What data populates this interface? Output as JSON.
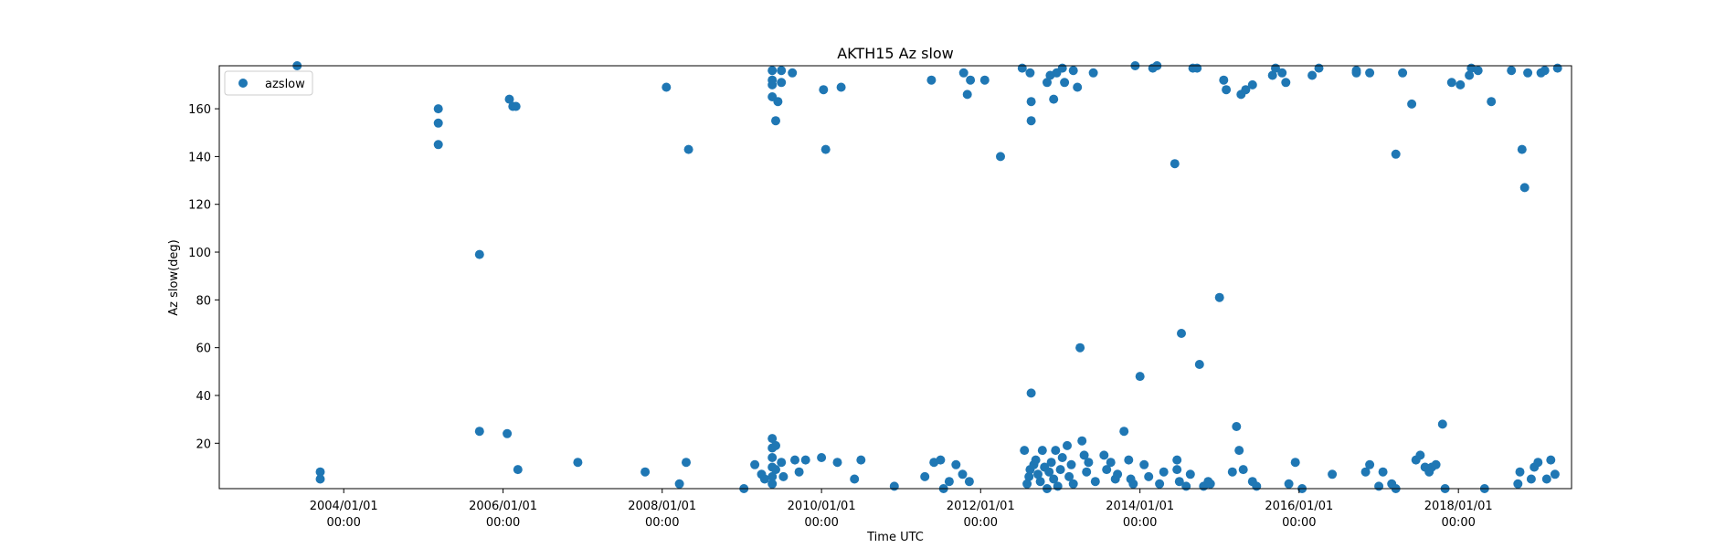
{
  "chart_data": {
    "type": "scatter",
    "title": "AKTH15 Az slow",
    "xlabel": "Time UTC",
    "ylabel": "Az slow(deg)",
    "x_axis": "date",
    "xlim": [
      "2002-06-09",
      "2019-06-04"
    ],
    "ylim": [
      1,
      178
    ],
    "grid": false,
    "legend_position": "upper-left",
    "colors": {
      "marker": "#1f77b4",
      "axes": "#000000",
      "background": "#ffffff"
    },
    "xticks": [
      {
        "value": "2004-01-01",
        "label": [
          "2004/01/01",
          "00:00"
        ]
      },
      {
        "value": "2006-01-01",
        "label": [
          "2006/01/01",
          "00:00"
        ]
      },
      {
        "value": "2008-01-01",
        "label": [
          "2008/01/01",
          "00:00"
        ]
      },
      {
        "value": "2010-01-01",
        "label": [
          "2010/01/01",
          "00:00"
        ]
      },
      {
        "value": "2012-01-01",
        "label": [
          "2012/01/01",
          "00:00"
        ]
      },
      {
        "value": "2014-01-01",
        "label": [
          "2014/01/01",
          "00:00"
        ]
      },
      {
        "value": "2016-01-01",
        "label": [
          "2016/01/01",
          "00:00"
        ]
      },
      {
        "value": "2018-01-01",
        "label": [
          "2018/01/01",
          "00:00"
        ]
      }
    ],
    "yticks": [
      {
        "value": 20,
        "label": "20"
      },
      {
        "value": 40,
        "label": "40"
      },
      {
        "value": 60,
        "label": "60"
      },
      {
        "value": 80,
        "label": "80"
      },
      {
        "value": 100,
        "label": "100"
      },
      {
        "value": 120,
        "label": "120"
      },
      {
        "value": 140,
        "label": "140"
      },
      {
        "value": 160,
        "label": "160"
      }
    ],
    "series": [
      {
        "name": "azslow",
        "points": [
          [
            "2003-06-01",
            178
          ],
          [
            "2003-09-15",
            8
          ],
          [
            "2003-09-15",
            5
          ],
          [
            "2005-03-10",
            160
          ],
          [
            "2005-03-10",
            154
          ],
          [
            "2005-03-10",
            145
          ],
          [
            "2005-09-15",
            99
          ],
          [
            "2005-09-15",
            25
          ],
          [
            "2006-01-30",
            164
          ],
          [
            "2006-02-15",
            161
          ],
          [
            "2006-03-01",
            161
          ],
          [
            "2006-01-20",
            24
          ],
          [
            "2006-03-10",
            9
          ],
          [
            "2006-12-10",
            12
          ],
          [
            "2007-10-15",
            8
          ],
          [
            "2008-01-20",
            169
          ],
          [
            "2008-05-01",
            143
          ],
          [
            "2008-03-20",
            3
          ],
          [
            "2008-04-20",
            12
          ],
          [
            "2009-01-10",
            1
          ],
          [
            "2009-03-01",
            11
          ],
          [
            "2009-04-01",
            7
          ],
          [
            "2009-04-15",
            5
          ],
          [
            "2009-05-20",
            176
          ],
          [
            "2009-05-20",
            172
          ],
          [
            "2009-05-20",
            170
          ],
          [
            "2009-05-20",
            165
          ],
          [
            "2009-05-20",
            22
          ],
          [
            "2009-05-20",
            18
          ],
          [
            "2009-05-20",
            14
          ],
          [
            "2009-05-20",
            10
          ],
          [
            "2009-05-20",
            6
          ],
          [
            "2009-05-20",
            3
          ],
          [
            "2009-06-05",
            155
          ],
          [
            "2009-06-05",
            19
          ],
          [
            "2009-06-05",
            9
          ],
          [
            "2009-06-15",
            163
          ],
          [
            "2009-07-01",
            171
          ],
          [
            "2009-07-01",
            176
          ],
          [
            "2009-07-01",
            12
          ],
          [
            "2009-07-10",
            6
          ],
          [
            "2009-08-20",
            175
          ],
          [
            "2009-09-01",
            13
          ],
          [
            "2009-09-20",
            8
          ],
          [
            "2009-10-20",
            13
          ],
          [
            "2010-01-10",
            168
          ],
          [
            "2010-01-20",
            143
          ],
          [
            "2010-01-01",
            14
          ],
          [
            "2010-04-01",
            169
          ],
          [
            "2010-03-15",
            12
          ],
          [
            "2010-06-01",
            5
          ],
          [
            "2010-07-01",
            13
          ],
          [
            "2010-12-01",
            2
          ],
          [
            "2011-04-20",
            6
          ],
          [
            "2011-05-20",
            172
          ],
          [
            "2011-06-01",
            12
          ],
          [
            "2011-07-01",
            13
          ],
          [
            "2011-07-15",
            1
          ],
          [
            "2011-08-10",
            4
          ],
          [
            "2011-09-10",
            11
          ],
          [
            "2011-10-10",
            7
          ],
          [
            "2011-11-10",
            4
          ],
          [
            "2011-10-15",
            175
          ],
          [
            "2011-11-01",
            166
          ],
          [
            "2011-11-15",
            172
          ],
          [
            "2012-01-20",
            172
          ],
          [
            "2012-04-01",
            140
          ],
          [
            "2012-07-10",
            177
          ],
          [
            "2012-07-20",
            17
          ],
          [
            "2012-08-15",
            175
          ],
          [
            "2012-08-20",
            163
          ],
          [
            "2012-08-20",
            155
          ],
          [
            "2012-08-20",
            41
          ],
          [
            "2012-08-01",
            3
          ],
          [
            "2012-08-10",
            6
          ],
          [
            "2012-08-15",
            9
          ],
          [
            "2012-09-01",
            11
          ],
          [
            "2012-09-10",
            13
          ],
          [
            "2012-09-20",
            7
          ],
          [
            "2012-10-01",
            4
          ],
          [
            "2012-10-10",
            17
          ],
          [
            "2012-10-20",
            10
          ],
          [
            "2012-11-01",
            171
          ],
          [
            "2012-11-15",
            174
          ],
          [
            "2012-12-01",
            164
          ],
          [
            "2012-12-15",
            175
          ],
          [
            "2012-11-01",
            1
          ],
          [
            "2012-11-10",
            8
          ],
          [
            "2012-11-20",
            12
          ],
          [
            "2012-12-01",
            5
          ],
          [
            "2012-12-10",
            17
          ],
          [
            "2012-12-20",
            2
          ],
          [
            "2013-01-01",
            9
          ],
          [
            "2013-01-10",
            14
          ],
          [
            "2013-01-10",
            177
          ],
          [
            "2013-01-20",
            171
          ],
          [
            "2013-02-01",
            19
          ],
          [
            "2013-02-10",
            6
          ],
          [
            "2013-02-20",
            11
          ],
          [
            "2013-03-01",
            3
          ],
          [
            "2013-03-01",
            176
          ],
          [
            "2013-03-20",
            169
          ],
          [
            "2013-04-01",
            60
          ],
          [
            "2013-04-10",
            21
          ],
          [
            "2013-04-20",
            15
          ],
          [
            "2013-05-01",
            8
          ],
          [
            "2013-05-10",
            12
          ],
          [
            "2013-06-01",
            175
          ],
          [
            "2013-06-10",
            4
          ],
          [
            "2013-07-20",
            15
          ],
          [
            "2013-08-01",
            9
          ],
          [
            "2013-08-20",
            12
          ],
          [
            "2013-09-10",
            5
          ],
          [
            "2013-09-20",
            7
          ],
          [
            "2013-10-20",
            25
          ],
          [
            "2013-11-10",
            13
          ],
          [
            "2013-11-20",
            5
          ],
          [
            "2013-12-01",
            3
          ],
          [
            "2013-12-10",
            178
          ],
          [
            "2014-01-01",
            48
          ],
          [
            "2014-01-20",
            11
          ],
          [
            "2014-02-10",
            6
          ],
          [
            "2014-03-01",
            177
          ],
          [
            "2014-03-20",
            178
          ],
          [
            "2014-04-01",
            3
          ],
          [
            "2014-04-20",
            8
          ],
          [
            "2014-06-10",
            137
          ],
          [
            "2014-06-20",
            13
          ],
          [
            "2014-06-20",
            9
          ],
          [
            "2014-07-01",
            4
          ],
          [
            "2014-07-10",
            66
          ],
          [
            "2014-08-01",
            2
          ],
          [
            "2014-08-20",
            7
          ],
          [
            "2014-09-01",
            177
          ],
          [
            "2014-09-20",
            177
          ],
          [
            "2014-10-01",
            53
          ],
          [
            "2014-10-20",
            2
          ],
          [
            "2014-11-10",
            4
          ],
          [
            "2014-11-20",
            3
          ],
          [
            "2015-01-01",
            81
          ],
          [
            "2015-01-20",
            172
          ],
          [
            "2015-02-01",
            168
          ],
          [
            "2015-03-01",
            8
          ],
          [
            "2015-03-20",
            27
          ],
          [
            "2015-04-01",
            17
          ],
          [
            "2015-04-20",
            9
          ],
          [
            "2015-04-10",
            166
          ],
          [
            "2015-05-01",
            168
          ],
          [
            "2015-06-01",
            170
          ],
          [
            "2015-06-01",
            4
          ],
          [
            "2015-06-20",
            2
          ],
          [
            "2015-09-01",
            174
          ],
          [
            "2015-09-15",
            177
          ],
          [
            "2015-10-15",
            175
          ],
          [
            "2015-11-01",
            171
          ],
          [
            "2015-11-15",
            3
          ],
          [
            "2015-12-15",
            12
          ],
          [
            "2016-01-15",
            1
          ],
          [
            "2016-03-01",
            174
          ],
          [
            "2016-04-01",
            177
          ],
          [
            "2016-06-01",
            7
          ],
          [
            "2016-09-20",
            176
          ],
          [
            "2016-09-20",
            175
          ],
          [
            "2016-11-20",
            175
          ],
          [
            "2016-11-01",
            8
          ],
          [
            "2016-11-20",
            11
          ],
          [
            "2017-01-01",
            2
          ],
          [
            "2017-01-20",
            8
          ],
          [
            "2017-03-01",
            3
          ],
          [
            "2017-03-20",
            1
          ],
          [
            "2017-03-20",
            141
          ],
          [
            "2017-04-20",
            175
          ],
          [
            "2017-06-01",
            162
          ],
          [
            "2017-06-20",
            13
          ],
          [
            "2017-07-10",
            15
          ],
          [
            "2017-08-01",
            10
          ],
          [
            "2017-08-20",
            8
          ],
          [
            "2017-09-01",
            10
          ],
          [
            "2017-09-20",
            11
          ],
          [
            "2017-10-20",
            28
          ],
          [
            "2017-11-01",
            1
          ],
          [
            "2017-12-01",
            171
          ],
          [
            "2018-01-10",
            170
          ],
          [
            "2018-02-20",
            174
          ],
          [
            "2018-03-01",
            177
          ],
          [
            "2018-04-01",
            176
          ],
          [
            "2018-05-01",
            1
          ],
          [
            "2018-06-01",
            163
          ],
          [
            "2018-09-01",
            176
          ],
          [
            "2018-10-01",
            3
          ],
          [
            "2018-10-10",
            8
          ],
          [
            "2018-10-20",
            143
          ],
          [
            "2018-11-01",
            127
          ],
          [
            "2018-11-15",
            175
          ],
          [
            "2018-12-01",
            5
          ],
          [
            "2018-12-15",
            10
          ],
          [
            "2019-01-01",
            12
          ],
          [
            "2019-01-15",
            175
          ],
          [
            "2019-02-01",
            176
          ],
          [
            "2019-02-10",
            5
          ],
          [
            "2019-03-01",
            13
          ],
          [
            "2019-03-20",
            7
          ],
          [
            "2019-04-01",
            177
          ]
        ]
      }
    ]
  }
}
